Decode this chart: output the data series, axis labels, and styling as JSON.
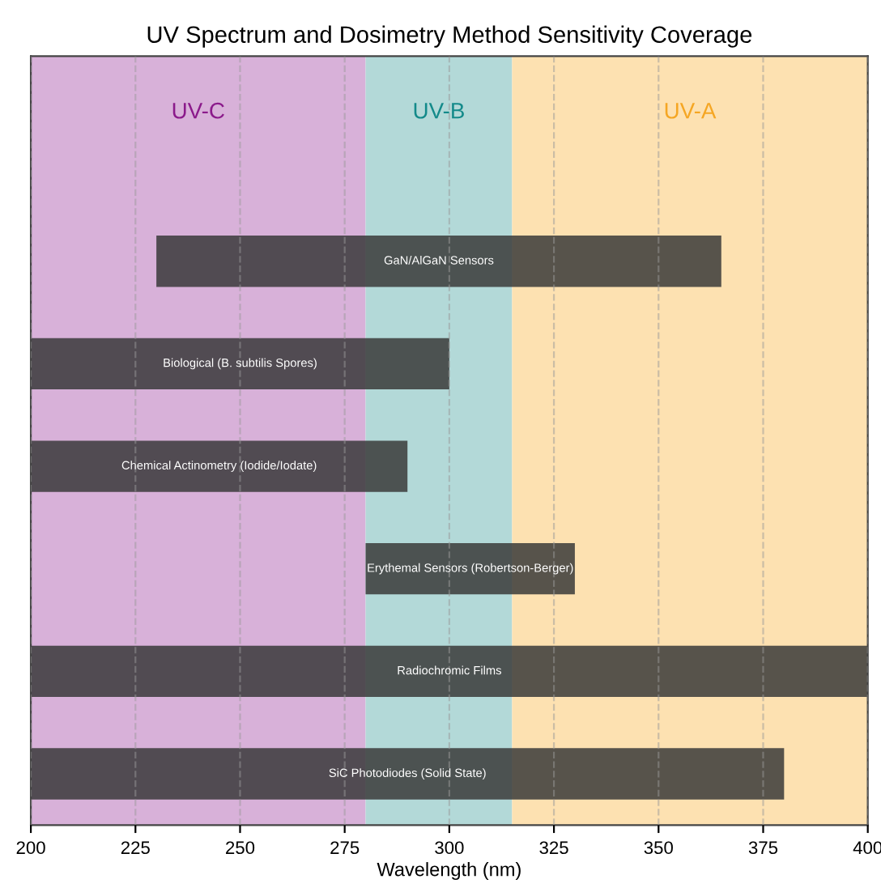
{
  "chart_data": {
    "type": "bar",
    "orientation": "horizontal",
    "title": "UV Spectrum and Dosimetry Method Sensitivity Coverage",
    "xlabel": "Wavelength (nm)",
    "categories": [
      "GaN/AlGaN Sensors",
      "Biological (B. subtilis Spores)",
      "Chemical Actinometry (Iodide/Iodate)",
      "Erythemal Sensors (Robertson-Berger)",
      "Radiochromic Films",
      "SiC Photodiodes (Solid State)"
    ],
    "base": [
      230,
      200,
      200,
      280,
      200,
      200
    ],
    "values": [
      135,
      100,
      90,
      50,
      200,
      180
    ],
    "color": "#3a3a3a",
    "xlim": [
      200,
      400
    ],
    "xticks": [
      200,
      225,
      250,
      275,
      300,
      325,
      350,
      375,
      400
    ],
    "bands": [
      {
        "axis": "x",
        "from": 200,
        "to": 280,
        "label": "UV-C",
        "color": "#d8b1d9"
      },
      {
        "axis": "x",
        "from": 280,
        "to": 315,
        "label": "UV-B",
        "color": "#b3d9d8"
      },
      {
        "axis": "x",
        "from": 315,
        "to": 400,
        "label": "UV-A",
        "color": "#fde1b1"
      }
    ],
    "grid": "x",
    "tick_labels": "x"
  }
}
